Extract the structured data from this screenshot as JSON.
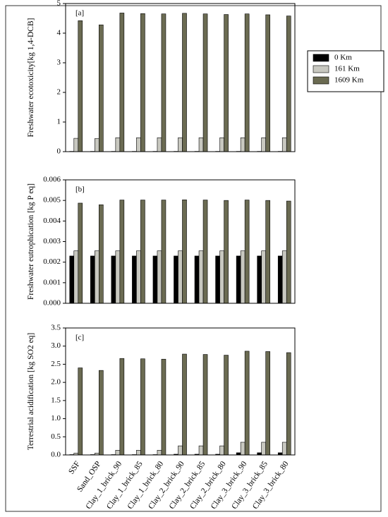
{
  "chart_data": [
    {
      "type": "bar",
      "panel_label": "[a]",
      "ylabel": "Freshwater ecotoxicity[kg 1,4-DCB]",
      "ylim": [
        0,
        5
      ],
      "yticks": [
        0,
        1,
        2,
        3,
        4,
        5
      ],
      "series": [
        {
          "name": "0 Km",
          "color": "#000000",
          "values": [
            0.01,
            0.01,
            0.01,
            0.01,
            0.01,
            0.01,
            0.01,
            0.01,
            0.01,
            0.01,
            0.01
          ]
        },
        {
          "name": "161 Km",
          "color": "#c8c8c0",
          "values": [
            0.45,
            0.44,
            0.47,
            0.47,
            0.47,
            0.47,
            0.47,
            0.47,
            0.47,
            0.47,
            0.47
          ]
        },
        {
          "name": "1609 Km",
          "color": "#6b6b52",
          "values": [
            4.42,
            4.28,
            4.68,
            4.66,
            4.65,
            4.67,
            4.65,
            4.63,
            4.65,
            4.62,
            4.58
          ]
        }
      ]
    },
    {
      "type": "bar",
      "panel_label": "[b]",
      "ylabel": "Freshwater eutrophication [kg P eq]",
      "ylim": [
        0,
        0.006
      ],
      "yticks": [
        {
          "value": 0,
          "label": "0.000"
        },
        {
          "value": 0.001,
          "label": "0.001"
        },
        {
          "value": 0.002,
          "label": "0.002"
        },
        {
          "value": 0.003,
          "label": "0.003"
        },
        {
          "value": 0.004,
          "label": "0.004"
        },
        {
          "value": 0.005,
          "label": "0.005"
        },
        {
          "value": 0.006,
          "label": "0.006"
        }
      ],
      "series": [
        {
          "values": [
            0.0023,
            0.0023,
            0.0023,
            0.0023,
            0.0023,
            0.0023,
            0.0023,
            0.0023,
            0.0023,
            0.0023,
            0.0023
          ]
        },
        {
          "values": [
            0.00255,
            0.00255,
            0.00255,
            0.00255,
            0.00255,
            0.00255,
            0.00255,
            0.00255,
            0.00255,
            0.00255,
            0.00255
          ]
        },
        {
          "values": [
            0.00487,
            0.00479,
            0.00502,
            0.00502,
            0.00502,
            0.00503,
            0.00502,
            0.005,
            0.00502,
            0.005,
            0.00497
          ]
        }
      ]
    },
    {
      "type": "bar",
      "panel_label": "[c]",
      "ylabel": "Terrestrial acidification [kg SO2 eq]",
      "ylim": [
        0,
        3.5
      ],
      "yticks": [
        {
          "value": 0,
          "label": "0.0"
        },
        0.5,
        {
          "value": 1,
          "label": "1.0"
        },
        1.5,
        {
          "value": 2,
          "label": "2.0"
        },
        2.5,
        {
          "value": 3,
          "label": "3.0"
        },
        3.5
      ],
      "categories": [
        "SSF",
        "Sand_OSP",
        "Clay_1_brick_90",
        "Clay_1_brick_85",
        "Clay_1_brick_80",
        "Clay_2_brick_90",
        "Clay_2_brick_85",
        "Clay_2_brick_80",
        "Clay_3_brick_90",
        "Clay_3_brick_85",
        "Clay_3_brick_80"
      ],
      "series": [
        {
          "values": [
            0.01,
            0.01,
            0.01,
            0.01,
            0.01,
            0.02,
            0.02,
            0.02,
            0.06,
            0.06,
            0.06
          ]
        },
        {
          "values": [
            0.05,
            0.05,
            0.13,
            0.13,
            0.13,
            0.25,
            0.25,
            0.25,
            0.35,
            0.35,
            0.35
          ]
        },
        {
          "values": [
            2.4,
            2.33,
            2.66,
            2.65,
            2.64,
            2.78,
            2.77,
            2.75,
            2.86,
            2.85,
            2.82
          ]
        }
      ]
    }
  ]
}
